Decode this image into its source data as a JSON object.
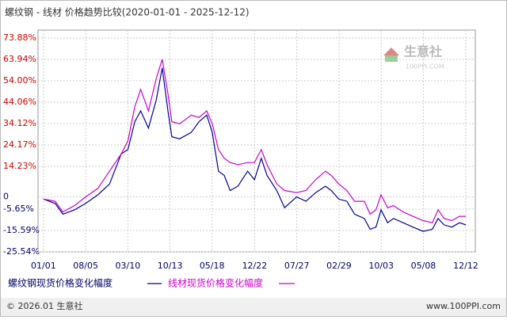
{
  "chart_data": {
    "type": "line",
    "title": "螺纹钢 - 线材 价格趋势比较(2020-01-01 - 2025-12-12)",
    "watermark": "生意社",
    "watermark_sub": "100PPI.COM",
    "footer_left": "© 2026.01 生意社",
    "footer_right": "www.100PPI.com",
    "x": [
      0,
      60,
      100,
      160,
      217,
      280,
      340,
      400,
      434,
      470,
      500,
      540,
      580,
      611,
      640,
      660,
      700,
      760,
      800,
      840,
      868,
      900,
      930,
      960,
      1000,
      1050,
      1085,
      1120,
      1150,
      1200,
      1240,
      1302,
      1350,
      1400,
      1450,
      1480,
      1519,
      1560,
      1600,
      1650,
      1680,
      1710,
      1736,
      1770,
      1800,
      1850,
      1900,
      1953,
      2000,
      2030,
      2060,
      2100,
      2140,
      2172
    ],
    "xlim": [
      -28,
      2221
    ],
    "xticks": [
      {
        "value": 0,
        "label": "01/01"
      },
      {
        "value": 217,
        "label": "08/05"
      },
      {
        "value": 434,
        "label": "03/10"
      },
      {
        "value": 651,
        "label": "10/13"
      },
      {
        "value": 867,
        "label": "05/18"
      },
      {
        "value": 1086,
        "label": "12/22"
      },
      {
        "value": 1303,
        "label": "07/27"
      },
      {
        "value": 1520,
        "label": "02/29"
      },
      {
        "value": 1737,
        "label": "10/03"
      },
      {
        "value": 1954,
        "label": "05/08"
      },
      {
        "value": 2172,
        "label": "12/12"
      }
    ],
    "ylim": [
      -25.54,
      73.88
    ],
    "yticks": [
      {
        "value": 73.88,
        "label": "73.88%"
      },
      {
        "value": 63.94,
        "label": "63.94%"
      },
      {
        "value": 54.0,
        "label": "54.00%"
      },
      {
        "value": 44.06,
        "label": "44.06%"
      },
      {
        "value": 34.12,
        "label": "34.12%"
      },
      {
        "value": 24.17,
        "label": "24.17%"
      },
      {
        "value": 14.23,
        "label": "14.23%"
      },
      0,
      {
        "value": -5.65,
        "label": "-5.65%"
      },
      {
        "value": -15.59,
        "label": "-15.59%"
      },
      {
        "value": -25.54,
        "label": "-25.54%"
      }
    ],
    "grid": true,
    "series": [
      {
        "name": "螺纹钢现货价格变化幅度",
        "color": "#000099",
        "values": [
          -1,
          -3,
          -8,
          -6,
          -3,
          1,
          6,
          20,
          22,
          35,
          40,
          32,
          45,
          60,
          40,
          28,
          27,
          30,
          35,
          38,
          30,
          12,
          10,
          3,
          5,
          12,
          8,
          18,
          10,
          3,
          -5,
          0,
          -2,
          2,
          5,
          3,
          -1,
          -2,
          -8,
          -10,
          -15,
          -14,
          -6,
          -12,
          -10,
          -12,
          -14,
          -16,
          -15,
          -10,
          -13,
          -14,
          -12,
          -13
        ]
      },
      {
        "name": "线材现货价格变化幅度",
        "color": "#cc00cc",
        "values": [
          -1,
          -2,
          -7,
          -4,
          0,
          4,
          12,
          20,
          26,
          42,
          50,
          40,
          55,
          64,
          48,
          35,
          34,
          38,
          37,
          40,
          34,
          22,
          18,
          16,
          15,
          16,
          16,
          22,
          15,
          6,
          3,
          2,
          3,
          8,
          12,
          10,
          6,
          3,
          -2,
          -2,
          -8,
          -6,
          1,
          -5,
          -4,
          -7,
          -9,
          -11,
          -12,
          -6,
          -10,
          -11,
          -9,
          -9
        ]
      }
    ]
  }
}
